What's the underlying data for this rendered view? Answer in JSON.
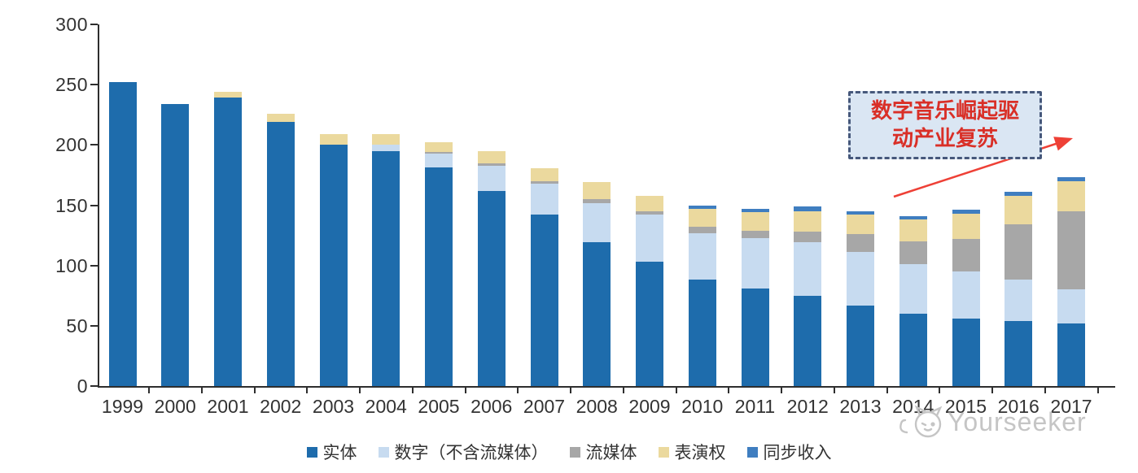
{
  "chart_data": {
    "type": "bar",
    "stacked": true,
    "grid": false,
    "legend_position": "bottom",
    "ylim": [
      0,
      300
    ],
    "yticks": [
      0,
      50,
      100,
      150,
      200,
      250,
      300
    ],
    "categories": [
      "1999",
      "2000",
      "2001",
      "2002",
      "2003",
      "2004",
      "2005",
      "2006",
      "2007",
      "2008",
      "2009",
      "2010",
      "2011",
      "2012",
      "2013",
      "2014",
      "2015",
      "2016",
      "2017"
    ],
    "series": [
      {
        "key": "physical",
        "name": "实体",
        "color": "#1e6cac",
        "values": [
          252,
          234,
          239,
          219,
          200,
          195,
          181,
          162,
          142,
          119,
          103,
          88,
          81,
          75,
          67,
          60,
          56,
          54,
          52
        ]
      },
      {
        "key": "digital",
        "name": "数字（不含流媒体）",
        "color": "#c7dbf0",
        "values": [
          0,
          0,
          0,
          0,
          0,
          5,
          12,
          21,
          26,
          33,
          39,
          39,
          42,
          44,
          44,
          41,
          39,
          34,
          28
        ]
      },
      {
        "key": "streaming",
        "name": "流媒体",
        "color": "#a7a7a7",
        "values": [
          0,
          0,
          0,
          0,
          0,
          0,
          1,
          2,
          2,
          3,
          3,
          5,
          6,
          9,
          15,
          19,
          27,
          46,
          65
        ]
      },
      {
        "key": "performance",
        "name": "表演权",
        "color": "#ebd99e",
        "values": [
          0,
          0,
          5,
          7,
          9,
          9,
          8,
          10,
          11,
          14,
          13,
          15,
          15,
          17,
          16,
          18,
          21,
          24,
          25
        ]
      },
      {
        "key": "sync",
        "name": "同步收入",
        "color": "#3f7ec0",
        "values": [
          0,
          0,
          0,
          0,
          0,
          0,
          0,
          0,
          0,
          0,
          0,
          3,
          3,
          4,
          3,
          3,
          3,
          3,
          3
        ]
      }
    ]
  },
  "annotation": {
    "line1": "数字音乐崛起驱",
    "line2": "动产业复苏",
    "text_color": "#d92f27",
    "box_fill": "#dae6f3",
    "border_color": "#46587b",
    "arrow_color": "#ee4036"
  },
  "watermark": {
    "text": "Yourseeker",
    "color": "#c5c5c5",
    "logo": "cat-logo-icon"
  },
  "axis": {
    "label_color": "#333333"
  }
}
